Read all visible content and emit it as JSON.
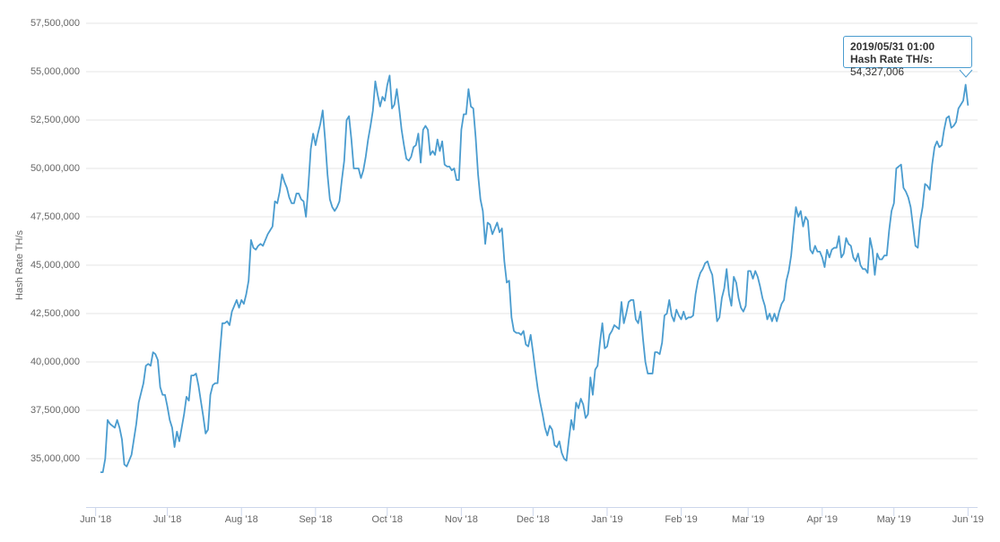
{
  "chart_data": {
    "type": "line",
    "y_label": "Hash Rate TH/s",
    "tooltip": {
      "title": "2019/05/31 01:00",
      "series_label": "Hash Rate TH/s:",
      "value_label": "54,327,006"
    },
    "xlim": [
      -4,
      369
    ],
    "xticks": [
      {
        "value": 0,
        "label": "Jun '18"
      },
      {
        "value": 30,
        "label": "Jul '18"
      },
      {
        "value": 61,
        "label": "Aug '18"
      },
      {
        "value": 92,
        "label": "Sep '18"
      },
      {
        "value": 122,
        "label": "Oct '18"
      },
      {
        "value": 153,
        "label": "Nov '18"
      },
      {
        "value": 183,
        "label": "Dec '18"
      },
      {
        "value": 214,
        "label": "Jan '19"
      },
      {
        "value": 245,
        "label": "Feb '19"
      },
      {
        "value": 273,
        "label": "Mar '19"
      },
      {
        "value": 304,
        "label": "Apr '19"
      },
      {
        "value": 334,
        "label": "May '19"
      },
      {
        "value": 365,
        "label": "Jun '19"
      }
    ],
    "ylim": [
      32500000,
      57500000
    ],
    "yticks": [
      {
        "value": 35000000,
        "label": "35,000,000"
      },
      {
        "value": 37500000,
        "label": "37,500,000"
      },
      {
        "value": 40000000,
        "label": "40,000,000"
      },
      {
        "value": 42500000,
        "label": "42,500,000"
      },
      {
        "value": 45000000,
        "label": "45,000,000"
      },
      {
        "value": 47500000,
        "label": "47,500,000"
      },
      {
        "value": 50000000,
        "label": "50,000,000"
      },
      {
        "value": 52500000,
        "label": "52,500,000"
      },
      {
        "value": 55000000,
        "label": "55,000,000"
      },
      {
        "value": 57500000,
        "label": "57,500,000"
      }
    ],
    "grid": true,
    "x": [
      2,
      3,
      4,
      5,
      6,
      7,
      8,
      9,
      10,
      11,
      12,
      13,
      14,
      15,
      16,
      17,
      18,
      19,
      20,
      21,
      22,
      23,
      24,
      25,
      26,
      27,
      28,
      29,
      30,
      31,
      32,
      33,
      34,
      35,
      36,
      37,
      38,
      39,
      40,
      41,
      42,
      43,
      44,
      45,
      46,
      47,
      48,
      49,
      50,
      51,
      52,
      53,
      54,
      55,
      56,
      57,
      58,
      59,
      60,
      61,
      62,
      63,
      64,
      65,
      66,
      67,
      68,
      69,
      70,
      71,
      72,
      73,
      74,
      75,
      76,
      77,
      78,
      79,
      80,
      81,
      82,
      83,
      84,
      85,
      86,
      87,
      88,
      89,
      90,
      91,
      92,
      93,
      94,
      95,
      96,
      97,
      98,
      99,
      100,
      101,
      102,
      103,
      104,
      105,
      106,
      107,
      108,
      109,
      110,
      111,
      112,
      113,
      114,
      115,
      116,
      117,
      118,
      119,
      120,
      121,
      122,
      123,
      124,
      125,
      126,
      127,
      128,
      129,
      130,
      131,
      132,
      133,
      134,
      135,
      136,
      137,
      138,
      139,
      140,
      141,
      142,
      143,
      144,
      145,
      146,
      147,
      148,
      149,
      150,
      151,
      152,
      153,
      154,
      155,
      156,
      157,
      158,
      159,
      160,
      161,
      162,
      163,
      164,
      165,
      166,
      167,
      168,
      169,
      170,
      171,
      172,
      173,
      174,
      175,
      176,
      177,
      178,
      179,
      180,
      181,
      182,
      183,
      184,
      185,
      186,
      187,
      188,
      189,
      190,
      191,
      192,
      193,
      194,
      195,
      196,
      197,
      198,
      199,
      200,
      201,
      202,
      203,
      204,
      205,
      206,
      207,
      208,
      209,
      210,
      211,
      212,
      213,
      214,
      215,
      216,
      217,
      218,
      219,
      220,
      221,
      222,
      223,
      224,
      225,
      226,
      227,
      228,
      229,
      230,
      231,
      232,
      233,
      234,
      235,
      236,
      237,
      238,
      239,
      240,
      241,
      242,
      243,
      244,
      245,
      246,
      247,
      248,
      249,
      250,
      251,
      252,
      253,
      254,
      255,
      256,
      257,
      258,
      259,
      260,
      261,
      262,
      263,
      264,
      265,
      266,
      267,
      268,
      269,
      270,
      271,
      272,
      273,
      274,
      275,
      276,
      277,
      278,
      279,
      280,
      281,
      282,
      283,
      284,
      285,
      286,
      287,
      288,
      289,
      290,
      291,
      292,
      293,
      294,
      295,
      296,
      297,
      298,
      299,
      300,
      301,
      302,
      303,
      304,
      305,
      306,
      307,
      308,
      309,
      310,
      311,
      312,
      313,
      314,
      315,
      316,
      317,
      318,
      319,
      320,
      321,
      322,
      323,
      324,
      325,
      326,
      327,
      328,
      329,
      330,
      331,
      332,
      333,
      334,
      335,
      336,
      337,
      338,
      339,
      340,
      341,
      342,
      343,
      344,
      345,
      346,
      347,
      348,
      349,
      350,
      351,
      352,
      353,
      354,
      355,
      356,
      357,
      358,
      359,
      360,
      361,
      362,
      363,
      364,
      365
    ],
    "series": [
      {
        "name": "Hash Rate TH/s",
        "color": "#4a9ccf",
        "values": [
          34300000,
          34300000,
          35000000,
          37000000,
          36800000,
          36700000,
          36600000,
          37000000,
          36600000,
          36000000,
          34700000,
          34600000,
          34900000,
          35200000,
          36000000,
          36800000,
          37900000,
          38400000,
          38900000,
          39800000,
          39900000,
          39800000,
          40500000,
          40400000,
          40100000,
          38700000,
          38300000,
          38300000,
          37700000,
          37000000,
          36600000,
          35600000,
          36400000,
          35900000,
          36600000,
          37300000,
          38200000,
          38000000,
          39300000,
          39300000,
          39400000,
          38800000,
          38000000,
          37200000,
          36300000,
          36500000,
          38300000,
          38800000,
          38900000,
          38900000,
          40500000,
          42000000,
          42000000,
          42100000,
          41900000,
          42600000,
          42900000,
          43200000,
          42800000,
          43200000,
          43000000,
          43500000,
          44200000,
          46300000,
          45900000,
          45800000,
          46000000,
          46100000,
          46000000,
          46300000,
          46600000,
          46800000,
          47000000,
          48300000,
          48200000,
          48800000,
          49700000,
          49300000,
          49000000,
          48500000,
          48200000,
          48200000,
          48700000,
          48700000,
          48400000,
          48300000,
          47500000,
          49100000,
          51000000,
          51800000,
          51200000,
          51800000,
          52300000,
          53000000,
          51500000,
          49700000,
          48400000,
          48000000,
          47800000,
          48000000,
          48300000,
          49400000,
          50400000,
          52500000,
          52700000,
          51500000,
          50000000,
          50000000,
          50000000,
          49500000,
          49900000,
          50600000,
          51500000,
          52200000,
          53000000,
          54500000,
          53800000,
          53200000,
          53700000,
          53500000,
          54300000,
          54800000,
          53100000,
          53300000,
          54100000,
          53100000,
          52000000,
          51200000,
          50500000,
          50400000,
          50600000,
          51100000,
          51200000,
          51800000,
          50300000,
          52000000,
          52200000,
          52000000,
          50700000,
          50900000,
          50700000,
          51500000,
          50900000,
          51400000,
          50200000,
          50100000,
          50100000,
          49900000,
          50000000,
          49400000,
          49400000,
          52000000,
          52800000,
          52800000,
          54100000,
          53200000,
          53100000,
          51600000,
          49700000,
          48400000,
          47800000,
          46100000,
          47200000,
          47100000,
          46600000,
          46900000,
          47200000,
          46700000,
          46900000,
          45200000,
          44100000,
          44200000,
          42300000,
          41600000,
          41500000,
          41500000,
          41400000,
          41600000,
          40900000,
          40800000,
          41400000,
          40500000,
          39500000,
          38600000,
          37900000,
          37300000,
          36600000,
          36200000,
          36700000,
          36500000,
          35700000,
          35600000,
          35900000,
          35300000,
          35000000,
          34900000,
          36000000,
          37000000,
          36500000,
          37900000,
          37600000,
          38100000,
          37800000,
          37100000,
          37300000,
          39200000,
          38300000,
          39600000,
          39800000,
          41000000,
          42000000,
          40700000,
          40800000,
          41400000,
          41600000,
          41900000,
          41800000,
          41700000,
          43100000,
          42000000,
          42500000,
          43100000,
          43200000,
          43200000,
          42200000,
          42000000,
          42600000,
          41200000,
          40000000,
          39400000,
          39400000,
          39400000,
          40500000,
          40500000,
          40400000,
          41000000,
          42400000,
          42500000,
          43200000,
          42400000,
          42100000,
          42700000,
          42400000,
          42200000,
          42600000,
          42200000,
          42300000,
          42300000,
          42400000,
          43500000,
          44200000,
          44600000,
          44800000,
          45100000,
          45200000,
          44800000,
          44500000,
          43400000,
          42100000,
          42300000,
          43300000,
          43800000,
          44800000,
          43500000,
          42900000,
          44400000,
          44100000,
          43300000,
          42800000,
          42600000,
          42900000,
          44700000,
          44700000,
          44300000,
          44700000,
          44400000,
          43900000,
          43300000,
          42900000,
          42200000,
          42500000,
          42100000,
          42500000,
          42100000,
          42600000,
          43000000,
          43200000,
          44200000,
          44700000,
          45500000,
          46800000,
          48000000,
          47500000,
          47800000,
          47000000,
          47500000,
          47300000,
          45800000,
          45600000,
          46000000,
          45700000,
          45700000,
          45400000,
          44900000,
          45800000,
          45400000,
          45800000,
          45900000,
          45900000,
          46500000,
          45400000,
          45600000,
          46400000,
          46100000,
          46000000,
          45400000,
          45200000,
          45600000,
          45000000,
          44800000,
          44800000,
          44600000,
          46400000,
          45800000,
          44500000,
          45600000,
          45300000,
          45300000,
          45500000,
          45500000,
          46800000,
          47800000,
          48200000,
          50000000,
          50100000,
          50200000,
          49000000,
          48800000,
          48500000,
          48000000,
          47000000,
          46000000,
          45900000,
          47300000,
          48000000,
          49200000,
          49100000,
          48900000,
          50200000,
          51100000,
          51400000,
          51100000,
          51200000,
          52000000,
          52600000,
          52700000,
          52100000,
          52200000,
          52400000,
          53100000,
          53300000,
          53500000,
          54327006,
          53250000
        ]
      }
    ]
  }
}
